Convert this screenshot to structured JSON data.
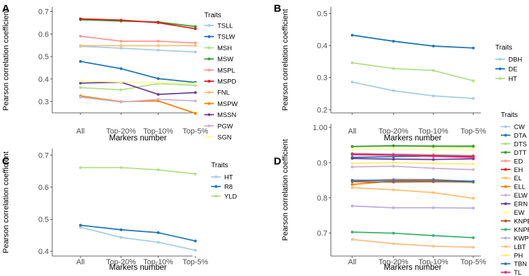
{
  "chart_data": [
    {
      "panel": "A",
      "type": "line",
      "categories": [
        "All",
        "Top-20%",
        "Top-10%",
        "Top-5%"
      ],
      "xlabel": "Markers number",
      "ylabel": "Pearson correlation coefficient",
      "ylim": [
        0.25,
        0.72
      ],
      "yticks": [
        0.3,
        0.4,
        0.5,
        0.6,
        0.7
      ],
      "yticklabels": [
        "0.3",
        "0.4",
        "0.5",
        "0.6",
        "0.7"
      ],
      "legend_title": "Traits",
      "series": [
        {
          "name": "TSLL",
          "color": "#a6cee3",
          "values": [
            0.545,
            0.537,
            0.528,
            0.52
          ]
        },
        {
          "name": "TSLW",
          "color": "#1f78b4",
          "values": [
            0.478,
            0.446,
            0.402,
            0.385
          ]
        },
        {
          "name": "MSH",
          "color": "#b2df8a",
          "values": [
            0.362,
            0.352,
            0.38,
            0.372
          ]
        },
        {
          "name": "MSW",
          "color": "#33a02c",
          "values": [
            0.663,
            0.657,
            0.653,
            0.633
          ]
        },
        {
          "name": "MSPL",
          "color": "#fb9a99",
          "values": [
            0.59,
            0.568,
            0.568,
            0.56
          ]
        },
        {
          "name": "MSPD",
          "color": "#e31a1c",
          "values": [
            0.667,
            0.661,
            0.65,
            0.623
          ]
        },
        {
          "name": "FNL",
          "color": "#fdbf6f",
          "values": [
            0.548,
            0.548,
            0.548,
            0.548
          ]
        },
        {
          "name": "MSPW",
          "color": "#ff7f00",
          "values": [
            0.325,
            0.3,
            0.303,
            0.248
          ]
        },
        {
          "name": "MSSN",
          "color": "#6a3d9a",
          "values": [
            0.382,
            0.386,
            0.332,
            0.34
          ]
        },
        {
          "name": "PGW",
          "color": "#cab2d6",
          "values": [
            0.32,
            0.298,
            0.31,
            0.303
          ]
        },
        {
          "name": "SGN",
          "color": "#ffff99",
          "values": [
            0.392,
            0.387,
            0.385,
            0.38
          ]
        }
      ]
    },
    {
      "panel": "B",
      "type": "line",
      "categories": [
        "All",
        "Top-20%",
        "Top-10%",
        "Top-5%"
      ],
      "xlabel": "Markers number",
      "ylabel": "Pearson correlation coefficient",
      "ylim": [
        0.19,
        0.52
      ],
      "yticks": [
        0.2,
        0.3,
        0.4,
        0.5
      ],
      "yticklabels": [
        "0.2",
        "0.3",
        "0.4",
        "0.5"
      ],
      "legend_title": "Traits",
      "series": [
        {
          "name": "DBH",
          "color": "#a6cee3",
          "values": [
            0.286,
            0.259,
            0.243,
            0.235
          ]
        },
        {
          "name": "DE",
          "color": "#1f78b4",
          "values": [
            0.432,
            0.413,
            0.398,
            0.392
          ]
        },
        {
          "name": "HT",
          "color": "#b2df8a",
          "values": [
            0.346,
            0.328,
            0.322,
            0.29
          ]
        }
      ]
    },
    {
      "panel": "C",
      "type": "line",
      "categories": [
        "All",
        "Top-20%",
        "Top-10%",
        "Top-5%"
      ],
      "xlabel": "Markers number",
      "ylabel": "Pearson correlation coefficient",
      "ylim": [
        0.385,
        0.72
      ],
      "yticks": [
        0.4,
        0.5,
        0.6,
        0.7
      ],
      "yticklabels": [
        "0.4",
        "0.5",
        "0.6",
        "0.7"
      ],
      "legend_title": "Traits",
      "series": [
        {
          "name": "HT",
          "color": "#a6cee3",
          "values": [
            0.475,
            0.443,
            0.428,
            0.403
          ]
        },
        {
          "name": "R8",
          "color": "#1f78b4",
          "values": [
            0.481,
            0.467,
            0.458,
            0.432
          ]
        },
        {
          "name": "YLD",
          "color": "#b2df8a",
          "values": [
            0.661,
            0.661,
            0.654,
            0.641
          ]
        }
      ]
    },
    {
      "panel": "D",
      "type": "line",
      "categories": [
        "All",
        "Top-20%",
        "Top-10%",
        "Top-5%"
      ],
      "xlabel": "Markers number",
      "ylabel": "Pearson correlation coefficient",
      "ylim": [
        0.635,
        1.01
      ],
      "yticks": [
        0.7,
        0.8,
        0.9,
        1.0
      ],
      "yticklabels": [
        "0.7",
        "0.8",
        "0.9",
        "1.00"
      ],
      "legend_title": "Traits",
      "series": [
        {
          "name": "CW",
          "color": "#a6cee3",
          "values": [
            0.925,
            0.925,
            0.923,
            0.921
          ]
        },
        {
          "name": "DTA",
          "color": "#1f78b4",
          "values": [
            0.915,
            0.917,
            0.919,
            0.915
          ]
        },
        {
          "name": "DTS",
          "color": "#b2df8a",
          "values": [
            0.945,
            0.947,
            0.945,
            0.944
          ]
        },
        {
          "name": "DTT",
          "color": "#33a02c",
          "values": [
            0.946,
            0.948,
            0.947,
            0.947
          ]
        },
        {
          "name": "ED",
          "color": "#fb9a99",
          "values": [
            0.847,
            0.853,
            0.852,
            0.845
          ]
        },
        {
          "name": "EH",
          "color": "#e31a1c",
          "values": [
            0.925,
            0.922,
            0.92,
            0.918
          ]
        },
        {
          "name": "EL",
          "color": "#fdbf6f",
          "values": [
            0.829,
            0.823,
            0.815,
            0.799
          ]
        },
        {
          "name": "ELL",
          "color": "#ff7f00",
          "values": [
            0.838,
            0.848,
            0.848,
            0.845
          ]
        },
        {
          "name": "ELW",
          "color": "#cab2d6",
          "values": [
            0.888,
            0.89,
            0.884,
            0.88
          ]
        },
        {
          "name": "ERN",
          "color": "#6a3d9a",
          "values": [
            0.912,
            0.91,
            0.909,
            0.911
          ]
        },
        {
          "name": "EW",
          "color": "#ffff99",
          "values": [
            0.938,
            0.938,
            0.937,
            0.936
          ]
        },
        {
          "name": "KNPE",
          "color": "#b15928",
          "values": [
            0.846,
            0.845,
            0.846,
            0.845
          ]
        },
        {
          "name": "KNPR",
          "color": "#3cb371",
          "values": [
            0.703,
            0.7,
            0.693,
            0.687
          ]
        },
        {
          "name": "KWPE",
          "color": "#bcaee0",
          "values": [
            0.777,
            0.772,
            0.772,
            0.771
          ]
        },
        {
          "name": "LBT",
          "color": "#fbc08a",
          "values": [
            0.682,
            0.67,
            0.663,
            0.66
          ]
        },
        {
          "name": "PH",
          "color": "#ffef6b",
          "values": [
            0.898,
            0.9,
            0.898,
            0.896
          ]
        },
        {
          "name": "TBN",
          "color": "#2c7bb6",
          "values": [
            0.85,
            0.85,
            0.851,
            0.847
          ]
        },
        {
          "name": "TL",
          "color": "#e7298a",
          "values": [
            0.923,
            0.921,
            0.918,
            0.915
          ]
        }
      ]
    }
  ]
}
